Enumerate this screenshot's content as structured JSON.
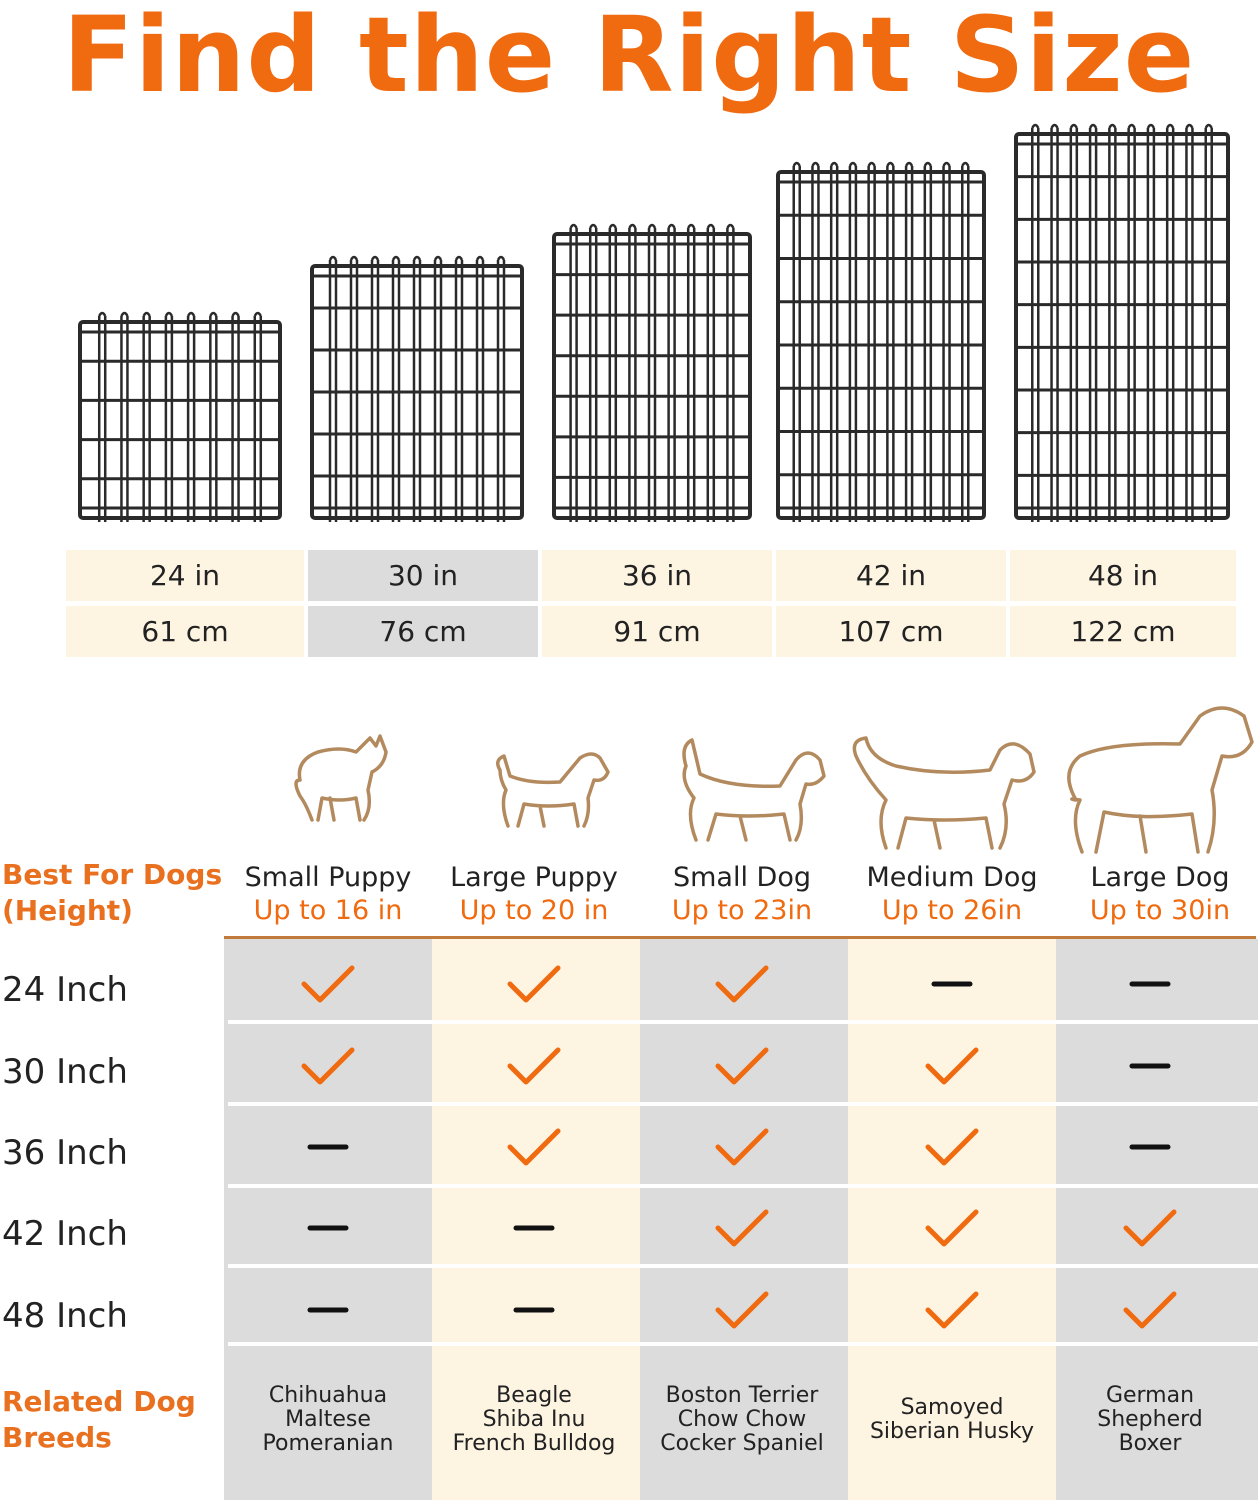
{
  "title": "Find the Right Size",
  "sizes": [
    {
      "in": "24 in",
      "cm": "61 cm"
    },
    {
      "in": "30 in",
      "cm": "76 cm"
    },
    {
      "in": "36 in",
      "cm": "91 cm"
    },
    {
      "in": "42 in",
      "cm": "107 cm"
    },
    {
      "in": "48 in",
      "cm": "122 cm"
    }
  ],
  "best_for_label": [
    "Best For Dogs",
    "(Height)"
  ],
  "dogs": [
    {
      "name": "Small Puppy",
      "height": "Up to 16 in",
      "icon": "chihuahua-outline-icon"
    },
    {
      "name": "Large Puppy",
      "height": "Up to 20 in",
      "icon": "terrier-outline-icon"
    },
    {
      "name": "Small Dog",
      "height": "Up to 23in",
      "icon": "beagle-outline-icon"
    },
    {
      "name": "Medium Dog",
      "height": "Up to 26in",
      "icon": "retriever-outline-icon"
    },
    {
      "name": "Large Dog",
      "height": "Up to 30in",
      "icon": "mastiff-outline-icon"
    }
  ],
  "rows": [
    {
      "label": "24 Inch",
      "fits": [
        true,
        true,
        true,
        false,
        false
      ]
    },
    {
      "label": "30 Inch",
      "fits": [
        true,
        true,
        true,
        true,
        false
      ]
    },
    {
      "label": "36 Inch",
      "fits": [
        false,
        true,
        true,
        true,
        false
      ]
    },
    {
      "label": "42 Inch",
      "fits": [
        false,
        false,
        true,
        true,
        true
      ]
    },
    {
      "label": "48 Inch",
      "fits": [
        false,
        false,
        true,
        true,
        true
      ]
    }
  ],
  "related_label": [
    "Related Dog",
    "Breeds"
  ],
  "breeds": [
    [
      "Chihuahua",
      "Maltese",
      "Pomeranian"
    ],
    [
      "Beagle",
      "Shiba Inu",
      "French Bulldog"
    ],
    [
      "Boston Terrier",
      "Chow Chow",
      "Cocker Spaniel"
    ],
    [
      "Samoyed",
      "Siberian Husky"
    ],
    [
      "German",
      "Shepherd",
      "Boxer"
    ]
  ],
  "colors": {
    "accent": "#f06a10",
    "cream": "#fdf4e2",
    "gray": "#dcdcdc",
    "wire": "#2a2a2a",
    "dog_outline": "#b38a5e"
  }
}
